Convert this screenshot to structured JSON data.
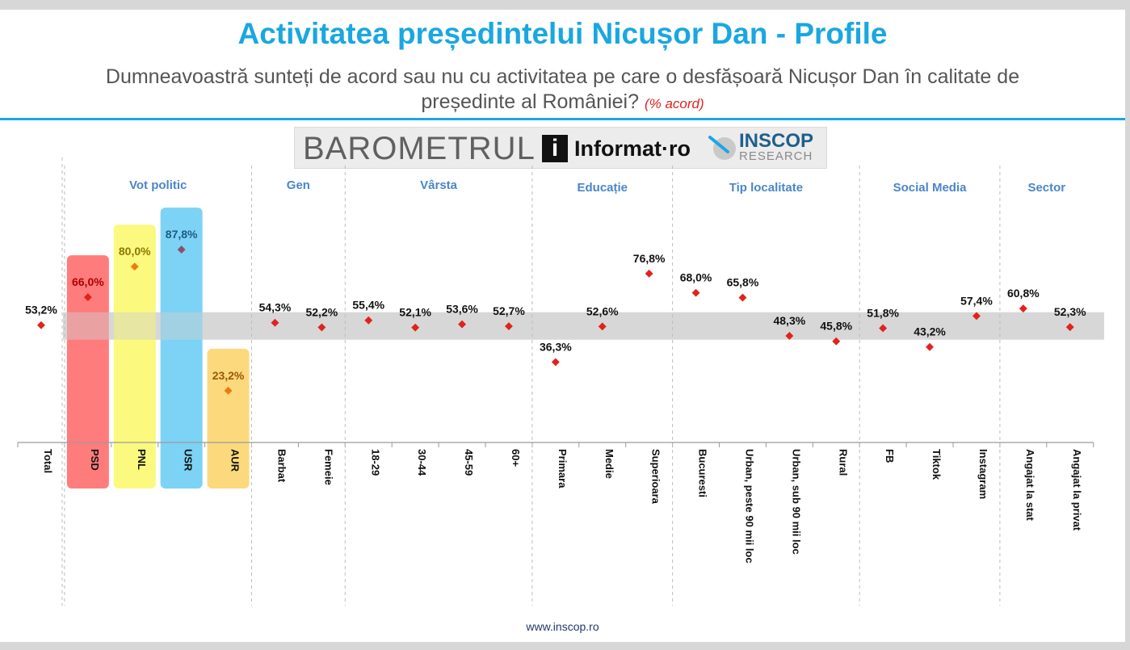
{
  "header": {
    "title": "Activitatea președintelui Nicușor Dan - Profile",
    "subtitle": "Dumneavoastră sunteți de acord sau nu cu activitatea pe care o desfășoară Nicușor Dan în calitate de președinte al României?",
    "subtitle_note": "(% acord)"
  },
  "logos": {
    "barometru": "BAROMETRUL",
    "informat": "Informat·ro",
    "inscop_name": "INSCOP",
    "inscop_sub": "RESEARCH"
  },
  "footer": {
    "url": "www.inscop.ro"
  },
  "chart_data": {
    "type": "scatter",
    "title": "Activitatea președintelui Nicușor Dan - Profile",
    "ylabel": "% acord",
    "ylim": [
      0,
      100
    ],
    "reference_band": {
      "label": "Total",
      "value": 53.2
    },
    "groups": [
      {
        "name": "",
        "categories": [
          "Total"
        ]
      },
      {
        "name": "Vot politic",
        "categories": [
          "PSD",
          "PNL",
          "USR",
          "AUR"
        ]
      },
      {
        "name": "Gen",
        "categories": [
          "Barbat",
          "Femeie"
        ]
      },
      {
        "name": "Vârsta",
        "categories": [
          "18-29",
          "30-44",
          "45-59",
          "60+"
        ]
      },
      {
        "name": "Educație",
        "categories": [
          "Primara",
          "Medie",
          "Superioara"
        ]
      },
      {
        "name": "Tip localitate",
        "categories": [
          "Bucuresti",
          "Urban, peste 90 mii loc",
          "Urban, sub 90 mii loc",
          "Rural"
        ]
      },
      {
        "name": "Social Media",
        "categories": [
          "FB",
          "Tiktok",
          "Instagram"
        ]
      },
      {
        "name": "Sector",
        "categories": [
          "Angajat la stat",
          "Angajat la privat"
        ]
      }
    ],
    "categories": [
      "Total",
      "PSD",
      "PNL",
      "USR",
      "AUR",
      "Barbat",
      "Femeie",
      "18-29",
      "30-44",
      "45-59",
      "60+",
      "Primara",
      "Medie",
      "Superioara",
      "Bucuresti",
      "Urban, peste 90 mii loc",
      "Urban, sub 90 mii loc",
      "Rural",
      "FB",
      "Tiktok",
      "Instagram",
      "Angajat la stat",
      "Angajat la privat"
    ],
    "values": [
      53.2,
      66.0,
      80.0,
      87.8,
      23.2,
      54.3,
      52.2,
      55.4,
      52.1,
      53.6,
      52.7,
      36.3,
      52.6,
      76.8,
      68.0,
      65.8,
      48.3,
      45.8,
      51.8,
      43.2,
      57.4,
      60.8,
      52.3
    ],
    "labels": [
      "53,2%",
      "66,0%",
      "80,0%",
      "87,8%",
      "23,2%",
      "54,3%",
      "52,2%",
      "55,4%",
      "52,1%",
      "53,6%",
      "52,7%",
      "36,3%",
      "52,6%",
      "76,8%",
      "68,0%",
      "65,8%",
      "48,3%",
      "45,8%",
      "51,8%",
      "43,2%",
      "57,4%",
      "60,8%",
      "52,3%"
    ],
    "highlight": {
      "PSD": "#ff7c7c",
      "PNL": "#fbf97e",
      "USR": "#7cd3f5",
      "AUR": "#fbd97c"
    },
    "marker_color": "#e0231c",
    "grid": false
  }
}
